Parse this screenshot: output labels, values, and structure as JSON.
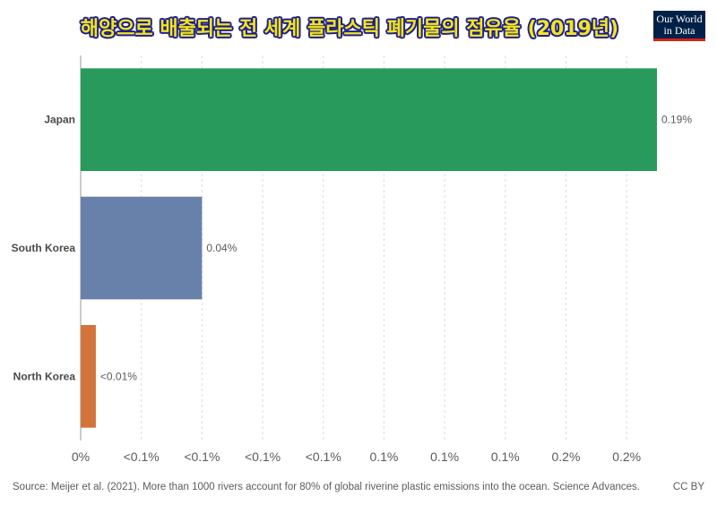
{
  "logo": {
    "line1": "Our World",
    "line2": "in Data"
  },
  "footer": {
    "source": "Source: Meijer et al. (2021). More than 1000 rivers account for 80% of global riverine plastic emissions into the ocean. Science Advances.",
    "license": "CC BY"
  },
  "colors": {
    "japan": "#279a5c",
    "south_korea": "#6881ab",
    "north_korea": "#d2743c"
  },
  "chart_data": {
    "type": "bar",
    "orientation": "horizontal",
    "title": "해양으로 배출되는 전 세계 플라스틱 폐기물의 점유율 (2019년)",
    "categories": [
      "Japan",
      "South Korea",
      "North Korea"
    ],
    "values": [
      0.19,
      0.04,
      0.005
    ],
    "data_labels": [
      "0.19%",
      "0.04%",
      "<0.01%"
    ],
    "unit": "%",
    "xlim": [
      0,
      0.19
    ],
    "xticks": [
      0,
      0.02,
      0.04,
      0.06,
      0.08,
      0.1,
      0.12,
      0.14,
      0.16,
      0.18
    ],
    "xtick_labels": [
      "0%",
      "<0.1%",
      "<0.1%",
      "<0.1%",
      "<0.1%",
      "0.1%",
      "0.1%",
      "0.1%",
      "0.2%",
      "0.2%"
    ],
    "grid": "vertical dashed"
  }
}
